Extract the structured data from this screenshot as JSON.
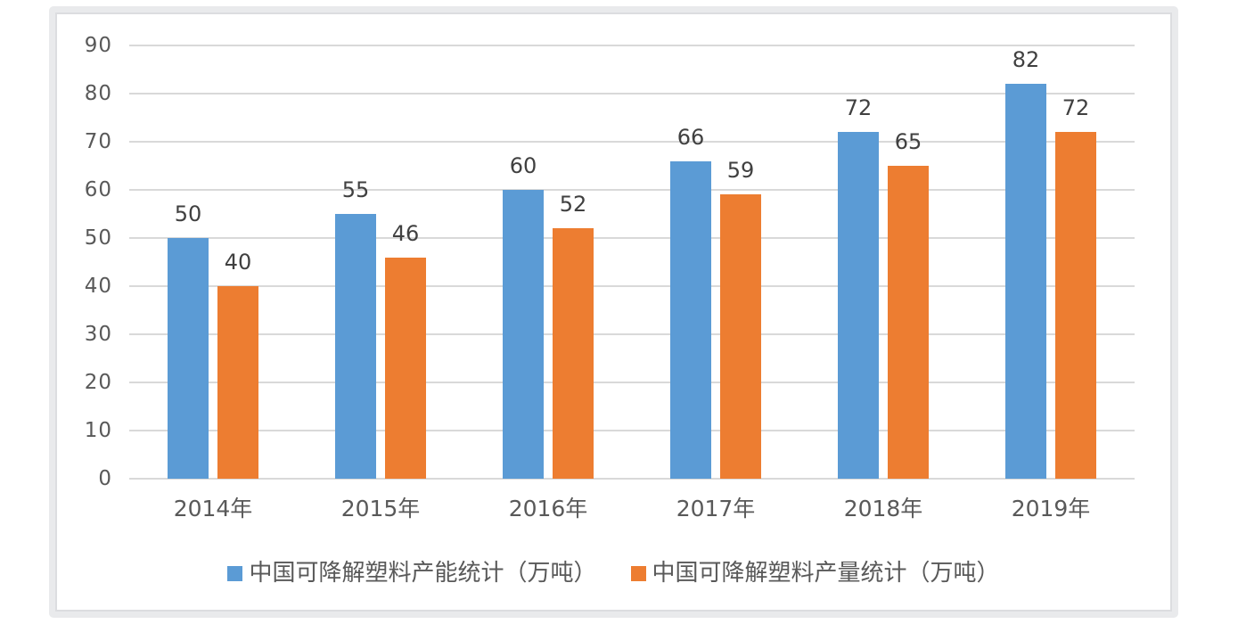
{
  "chart_data": {
    "type": "bar",
    "title": "",
    "categories": [
      "2014年",
      "2015年",
      "2016年",
      "2017年",
      "2018年",
      "2019年"
    ],
    "series": [
      {
        "key": "capacity",
        "name": "中国可降解塑料产能统计（万吨）",
        "color": "#5B9BD5",
        "values": [
          50,
          55,
          60,
          66,
          72,
          82
        ]
      },
      {
        "key": "output",
        "name": "中国可降解塑料产量统计（万吨）",
        "color": "#ED7D31",
        "values": [
          40,
          46,
          52,
          59,
          65,
          72
        ]
      }
    ],
    "xlabel": "",
    "ylabel": "",
    "ylim": [
      0,
      90
    ],
    "yticks": [
      0,
      10,
      20,
      30,
      40,
      50,
      60,
      70,
      80,
      90
    ],
    "grid": true,
    "data_labels": true,
    "legend_position": "bottom"
  },
  "colors": {
    "background": "#ffffff",
    "plot_background": "#ffffff",
    "grid": "#d9d9d9",
    "axis_text": "#595959",
    "data_label_text": "#404040",
    "frame_band": "#e9eaec",
    "frame_line": "#dcdde0",
    "series_capacity": "#5B9BD5",
    "series_output": "#ED7D31"
  }
}
